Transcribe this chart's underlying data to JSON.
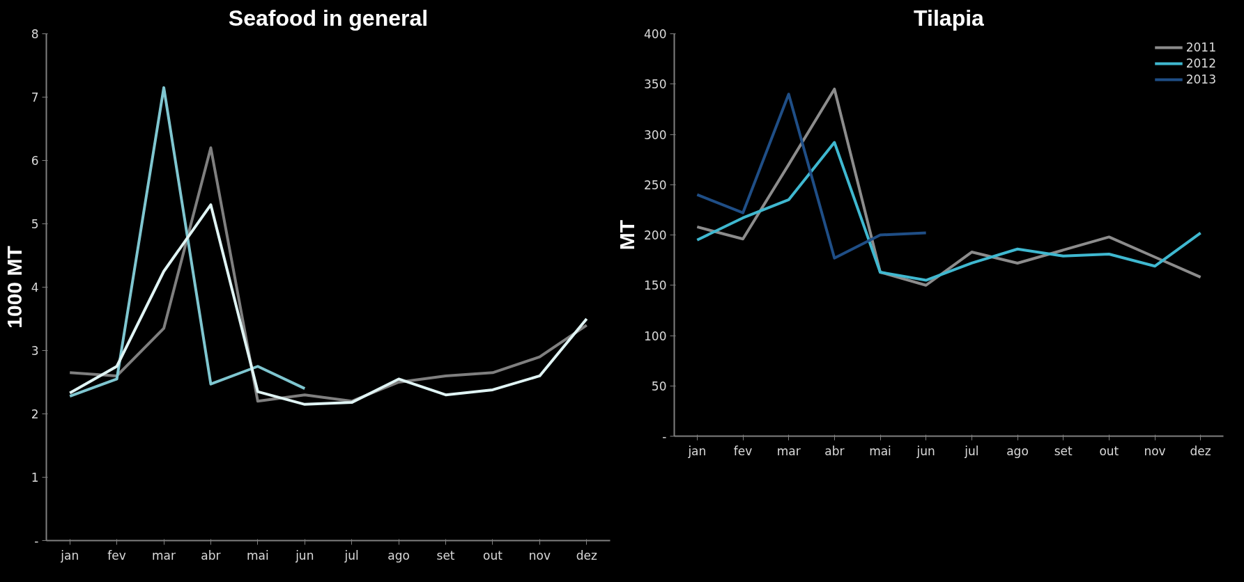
{
  "chart_data": [
    {
      "type": "line",
      "title": "Seafood in general",
      "ylabel": "1000 MT",
      "categories": [
        "jan",
        "fev",
        "mar",
        "abr",
        "mai",
        "jun",
        "jul",
        "ago",
        "set",
        "out",
        "nov",
        "dez"
      ],
      "ylim": [
        0,
        8
      ],
      "yticks": [
        {
          "value": 0,
          "label": "-"
        },
        1,
        2,
        3,
        4,
        5,
        6,
        7,
        8
      ],
      "grid": false,
      "legend": false,
      "series": [
        {
          "color": "#7f7f7f",
          "values": [
            2.65,
            2.6,
            3.35,
            6.2,
            2.2,
            2.3,
            2.2,
            2.5,
            2.6,
            2.65,
            2.9,
            3.4
          ]
        },
        {
          "color": "#7fc6d0",
          "values": [
            2.28,
            2.55,
            7.15,
            2.47,
            2.75,
            2.4,
            null,
            null,
            null,
            null,
            null,
            null
          ]
        },
        {
          "color": "#e0f4f4",
          "values": [
            2.33,
            2.75,
            4.25,
            5.3,
            2.35,
            2.15,
            2.18,
            2.55,
            2.3,
            2.38,
            2.6,
            3.5
          ]
        }
      ]
    },
    {
      "type": "line",
      "title": "Tilapia",
      "ylabel": "MT",
      "categories": [
        "jan",
        "fev",
        "mar",
        "abr",
        "mai",
        "jun",
        "jul",
        "ago",
        "set",
        "out",
        "nov",
        "dez"
      ],
      "ylim": [
        0,
        400
      ],
      "yticks": [
        {
          "value": 0,
          "label": "-"
        },
        50,
        100,
        150,
        200,
        250,
        300,
        350,
        400
      ],
      "grid": false,
      "legend": "top right",
      "series": [
        {
          "name": "2011",
          "color": "#8c8c8c",
          "values": [
            208,
            196,
            270,
            345,
            163,
            150,
            183,
            172,
            185,
            198,
            178,
            158
          ]
        },
        {
          "name": "2012",
          "color": "#3fb8d0",
          "values": [
            195,
            217,
            235,
            292,
            163,
            155,
            172,
            186,
            179,
            181,
            169,
            202
          ]
        },
        {
          "name": "2013",
          "color": "#1f4e86",
          "values": [
            240,
            222,
            340,
            177,
            200,
            202,
            null,
            null,
            null,
            null,
            null,
            null
          ]
        }
      ]
    }
  ]
}
